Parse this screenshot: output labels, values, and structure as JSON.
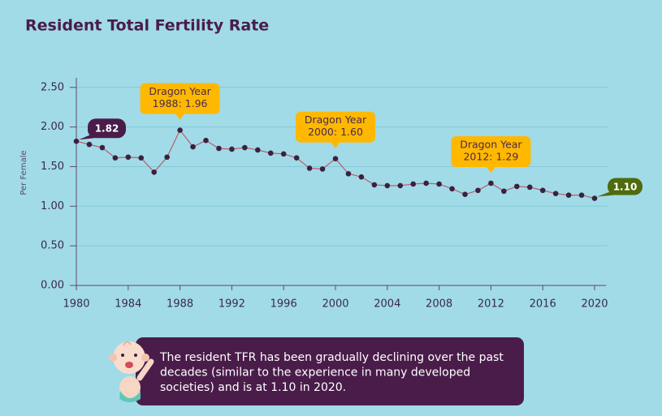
{
  "chart_data": {
    "type": "line",
    "title": "Resident Total Fertility Rate",
    "ylabel": "Per Female",
    "x": [
      1980,
      1981,
      1982,
      1983,
      1984,
      1985,
      1986,
      1987,
      1988,
      1989,
      1990,
      1991,
      1992,
      1993,
      1994,
      1995,
      1996,
      1997,
      1998,
      1999,
      2000,
      2001,
      2002,
      2003,
      2004,
      2005,
      2006,
      2007,
      2008,
      2009,
      2010,
      2011,
      2012,
      2013,
      2014,
      2015,
      2016,
      2017,
      2018,
      2019,
      2020
    ],
    "values": [
      1.82,
      1.78,
      1.74,
      1.61,
      1.62,
      1.61,
      1.43,
      1.62,
      1.96,
      1.75,
      1.83,
      1.73,
      1.72,
      1.74,
      1.71,
      1.67,
      1.66,
      1.61,
      1.48,
      1.47,
      1.6,
      1.41,
      1.37,
      1.27,
      1.26,
      1.26,
      1.28,
      1.29,
      1.28,
      1.22,
      1.15,
      1.2,
      1.29,
      1.19,
      1.25,
      1.24,
      1.2,
      1.16,
      1.14,
      1.14,
      1.1
    ],
    "value_labels": [
      "1.82",
      null,
      null,
      null,
      null,
      null,
      null,
      null,
      null,
      null,
      null,
      null,
      null,
      null,
      null,
      null,
      null,
      null,
      null,
      null,
      null,
      null,
      null,
      null,
      null,
      null,
      null,
      null,
      null,
      null,
      null,
      null,
      null,
      null,
      null,
      null,
      null,
      null,
      null,
      null,
      "1.10"
    ],
    "color": "#b5606e",
    "marker_color": "#3a2140",
    "xlim": [
      1980,
      2020
    ],
    "xticks": [
      1980,
      1984,
      1988,
      1992,
      1996,
      2000,
      2004,
      2008,
      2012,
      2016,
      2020
    ],
    "ylim": [
      0,
      2.6
    ],
    "yticks": [
      {
        "value": 0,
        "label": "0.00"
      },
      {
        "value": 0.5,
        "label": "0.50"
      },
      {
        "value": 1,
        "label": "1.00"
      },
      {
        "value": 1.5,
        "label": "1.50"
      },
      {
        "value": 2,
        "label": "2.00"
      },
      {
        "value": 2.5,
        "label": "2.50"
      }
    ],
    "grid": true,
    "annotations": [
      {
        "x": 1988,
        "text": [
          "Dragon Year",
          "1988: 1.96"
        ]
      },
      {
        "x": 2000,
        "text": [
          "Dragon Year",
          "2000: 1.60"
        ]
      },
      {
        "x": 2012,
        "text": [
          "Dragon Year",
          "2012: 1.29"
        ]
      }
    ],
    "note": [
      "The resident TFR has been gradually declining over the past",
      "decades (similar to the experience in many developed",
      "societies) and is at 1.10 in 2020."
    ]
  }
}
